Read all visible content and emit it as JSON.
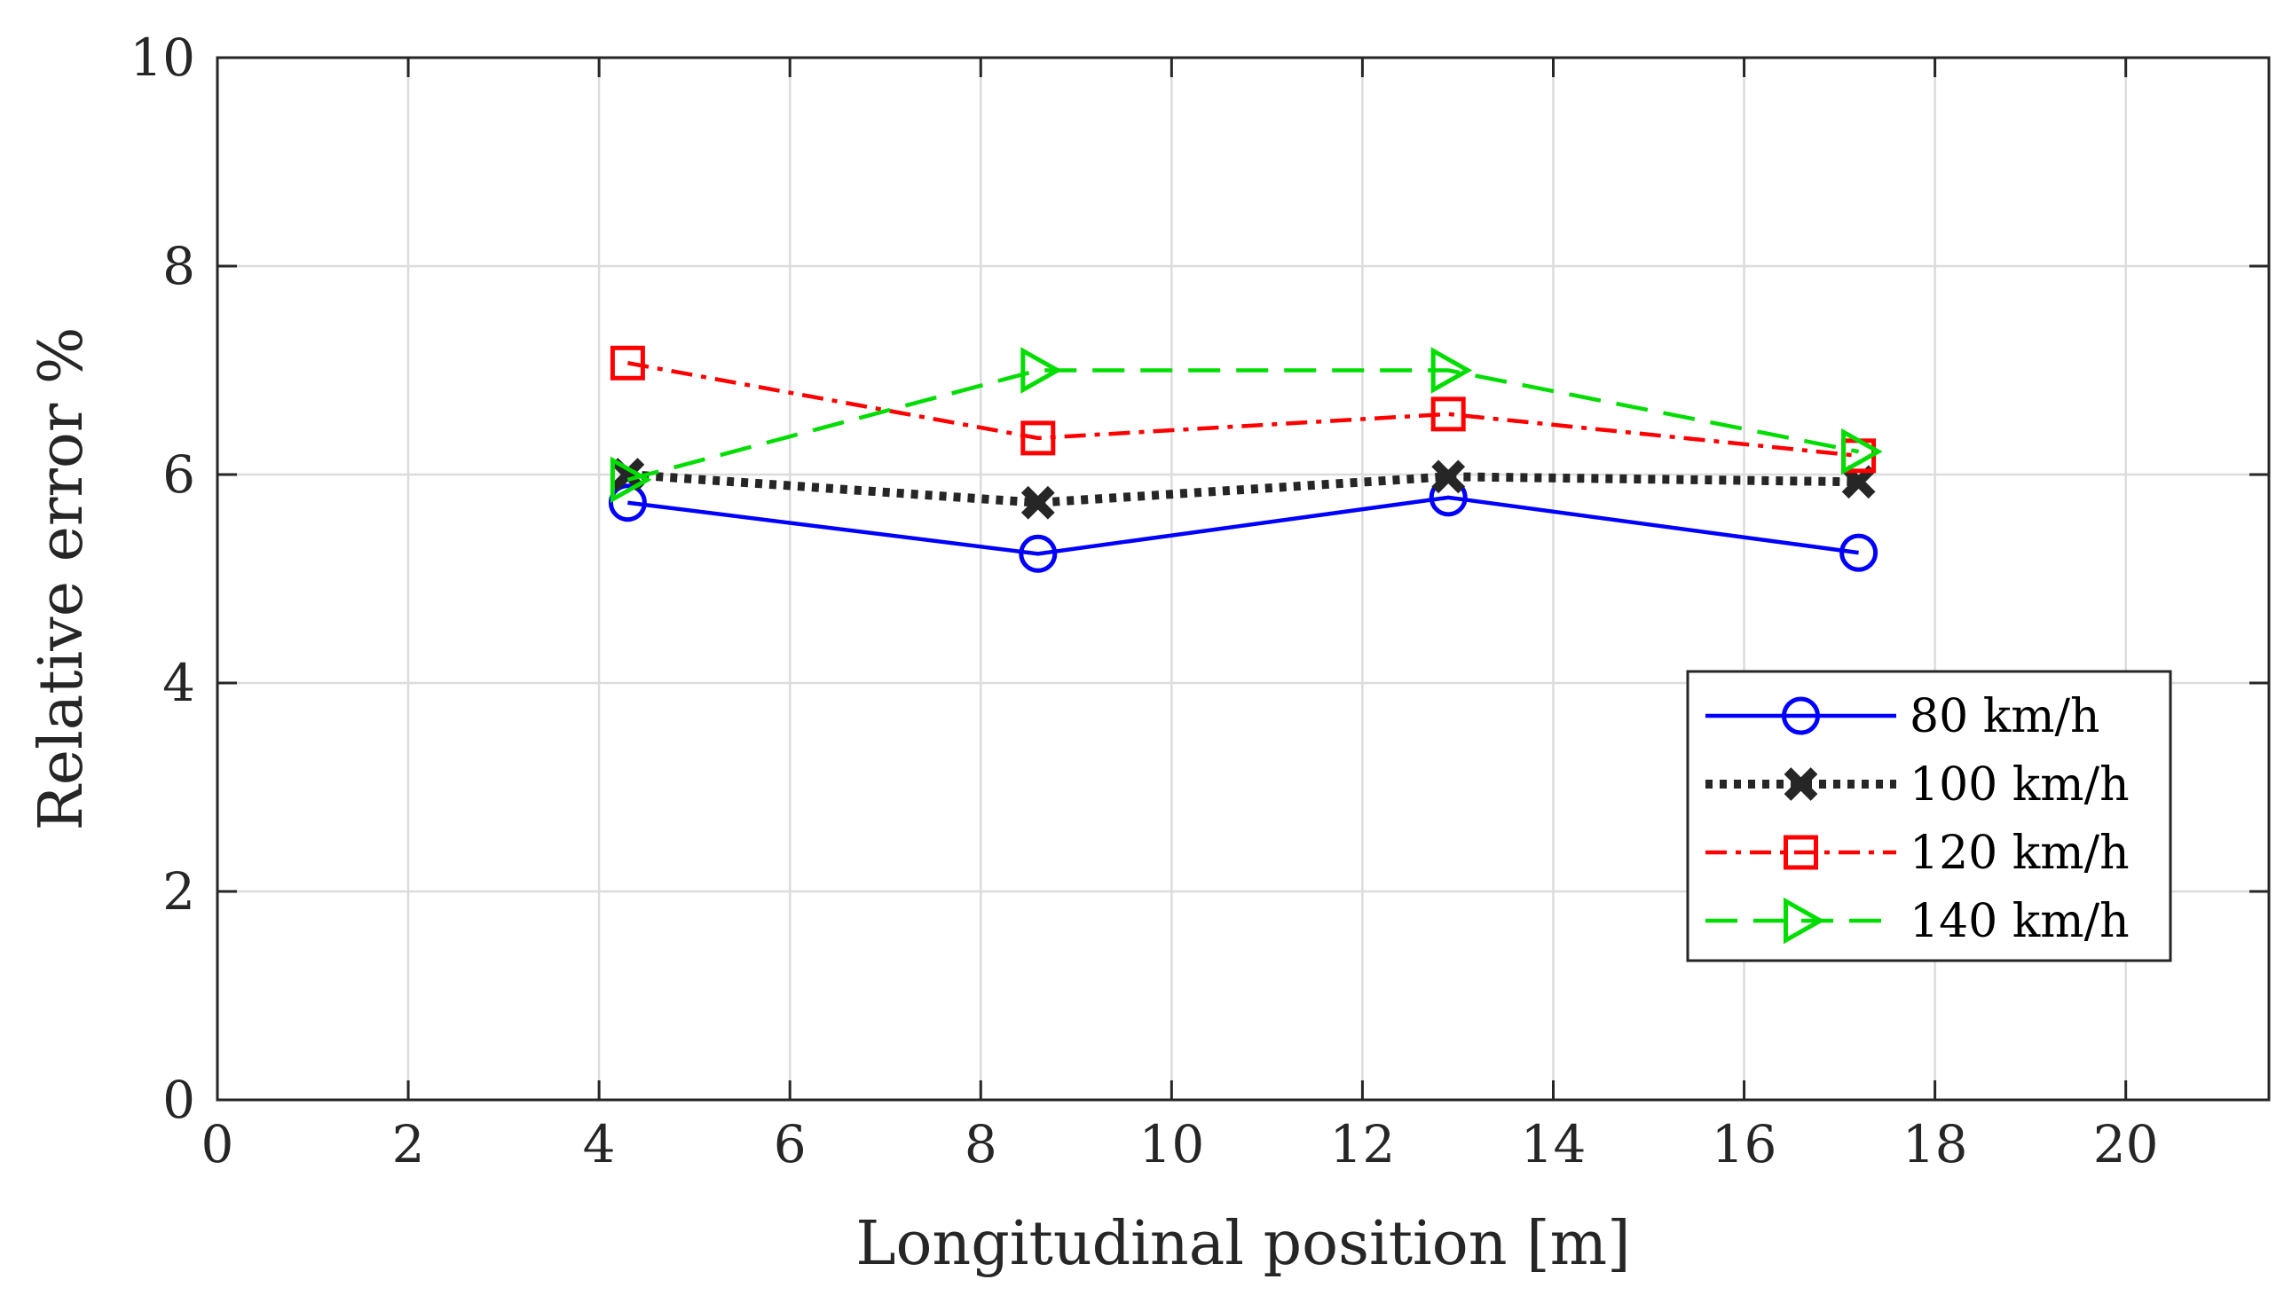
{
  "chart_data": {
    "type": "line",
    "title": "",
    "xlabel": "Longitudinal position [m]",
    "ylabel": "Relative error %",
    "xlim": [
      0,
      21.5
    ],
    "ylim": [
      0,
      10
    ],
    "xticks": [
      0,
      2,
      4,
      6,
      8,
      10,
      12,
      14,
      16,
      18,
      20
    ],
    "yticks": [
      0,
      2,
      4,
      6,
      8,
      10
    ],
    "grid": true,
    "legend_position": "lower-right",
    "series": [
      {
        "name": "80 km/h",
        "color": "#0000ff",
        "line_style": "solid",
        "marker": "circle",
        "x": [
          4.3,
          8.6,
          12.9,
          17.2
        ],
        "y": [
          5.73,
          5.24,
          5.78,
          5.25
        ]
      },
      {
        "name": "100 km/h",
        "color": "#262626",
        "line_style": "dotted",
        "marker": "x",
        "x": [
          4.3,
          8.6,
          12.9,
          17.2
        ],
        "y": [
          6.0,
          5.73,
          5.98,
          5.93
        ]
      },
      {
        "name": "120 km/h",
        "color": "#ff0000",
        "line_style": "dashdot",
        "marker": "square",
        "x": [
          4.3,
          8.6,
          12.9,
          17.2
        ],
        "y": [
          7.07,
          6.35,
          6.58,
          6.18
        ]
      },
      {
        "name": "140 km/h",
        "color": "#00dd00",
        "line_style": "dashed",
        "marker": "triangle-right",
        "x": [
          4.3,
          8.6,
          12.9,
          17.2
        ],
        "y": [
          5.95,
          7.0,
          7.0,
          6.22
        ]
      }
    ]
  }
}
